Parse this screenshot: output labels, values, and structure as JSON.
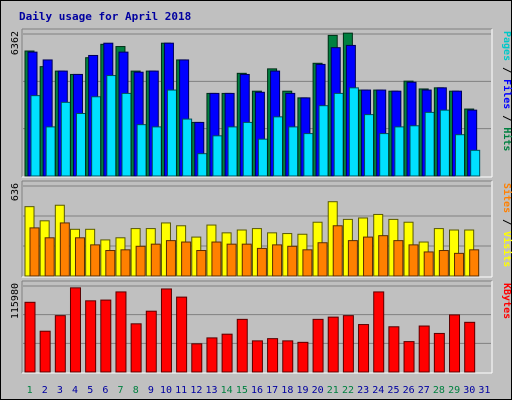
{
  "title": "Daily usage for April 2018",
  "chart_data": [
    {
      "type": "bar",
      "panel": "pages-files-hits",
      "y_max_label": "6362",
      "ylim": [
        0,
        6362
      ],
      "right_labels": [
        {
          "text": "Pages",
          "color": "#00c8c8"
        },
        {
          "text": " / ",
          "color": "#000000"
        },
        {
          "text": "Files",
          "color": "#0000ff"
        },
        {
          "text": " / ",
          "color": "#000000"
        },
        {
          "text": "Hits",
          "color": "#008040"
        }
      ],
      "categories": [
        "1",
        "2",
        "3",
        "4",
        "5",
        "6",
        "7",
        "8",
        "9",
        "10",
        "11",
        "12",
        "13",
        "14",
        "15",
        "16",
        "17",
        "18",
        "19",
        "20",
        "21",
        "22",
        "23",
        "24",
        "25",
        "26",
        "27",
        "28",
        "29",
        "30",
        "31"
      ],
      "series": [
        {
          "name": "Hits",
          "color": "#008040",
          "values": [
            5600,
            4900,
            4700,
            4550,
            5300,
            5900,
            5800,
            4700,
            4700,
            5950,
            5200,
            2400,
            3700,
            3700,
            4600,
            3800,
            4800,
            3800,
            3500,
            5050,
            6300,
            6400,
            3850,
            3850,
            3800,
            4250,
            3900,
            3950,
            3800,
            3000,
            0
          ]
        },
        {
          "name": "Files",
          "color": "#0000ff",
          "values": [
            5550,
            5200,
            4700,
            4550,
            5400,
            5950,
            5550,
            4650,
            4700,
            5950,
            5200,
            2400,
            3700,
            3700,
            4550,
            3750,
            4700,
            3700,
            3500,
            5000,
            5750,
            5850,
            3850,
            3850,
            3800,
            4200,
            3850,
            3950,
            3800,
            2950,
            0
          ]
        },
        {
          "name": "Pages",
          "color": "#00e0ff",
          "values": [
            3600,
            2200,
            3300,
            2800,
            3550,
            4500,
            3700,
            2300,
            2200,
            3850,
            2550,
            1000,
            1800,
            2200,
            2400,
            1650,
            2650,
            2200,
            1900,
            3150,
            3700,
            3950,
            2750,
            1900,
            2200,
            2250,
            2850,
            2950,
            1850,
            1150,
            0
          ]
        }
      ]
    },
    {
      "type": "bar",
      "panel": "sites-visits",
      "y_max_label": "636",
      "ylim": [
        0,
        636
      ],
      "right_labels": [
        {
          "text": "Sites",
          "color": "#ff8000"
        },
        {
          "text": " / ",
          "color": "#000000"
        },
        {
          "text": "Visits",
          "color": "#ffff00"
        }
      ],
      "categories": [
        "1",
        "2",
        "3",
        "4",
        "5",
        "6",
        "7",
        "8",
        "9",
        "10",
        "11",
        "12",
        "13",
        "14",
        "15",
        "16",
        "17",
        "18",
        "19",
        "20",
        "21",
        "22",
        "23",
        "24",
        "25",
        "26",
        "27",
        "28",
        "29",
        "30",
        "31"
      ],
      "series": [
        {
          "name": "Visits",
          "color": "#ffff00",
          "values": [
            490,
            390,
            500,
            330,
            330,
            255,
            270,
            335,
            335,
            375,
            355,
            275,
            360,
            305,
            325,
            335,
            305,
            300,
            295,
            380,
            525,
            400,
            410,
            435,
            400,
            380,
            240,
            335,
            325,
            325,
            0
          ]
        },
        {
          "name": "Sites",
          "color": "#ff8000",
          "values": [
            340,
            270,
            375,
            270,
            220,
            180,
            185,
            210,
            225,
            250,
            240,
            180,
            240,
            225,
            225,
            195,
            220,
            210,
            185,
            235,
            355,
            250,
            275,
            285,
            250,
            220,
            170,
            180,
            160,
            185,
            0
          ]
        }
      ]
    },
    {
      "type": "bar",
      "panel": "kbytes",
      "y_max_label": "115980",
      "ylim": [
        0,
        115980
      ],
      "right_labels": [
        {
          "text": "KBytes",
          "color": "#ff0000"
        }
      ],
      "categories": [
        "1",
        "2",
        "3",
        "4",
        "5",
        "6",
        "7",
        "8",
        "9",
        "10",
        "11",
        "12",
        "13",
        "14",
        "15",
        "16",
        "17",
        "18",
        "19",
        "20",
        "21",
        "22",
        "23",
        "24",
        "25",
        "26",
        "27",
        "28",
        "29",
        "30",
        "31"
      ],
      "series": [
        {
          "name": "KBytes",
          "color": "#ff0000",
          "values": [
            94000,
            55000,
            76000,
            113500,
            96000,
            97000,
            108000,
            65000,
            82000,
            112000,
            101000,
            38000,
            46000,
            51000,
            71000,
            42000,
            45000,
            42000,
            40000,
            71000,
            74000,
            76000,
            64000,
            108000,
            61000,
            41000,
            62000,
            52000,
            77000,
            67000,
            0
          ]
        }
      ]
    }
  ],
  "x_labels": [
    {
      "text": "1",
      "weekend": true
    },
    {
      "text": "2",
      "weekend": false
    },
    {
      "text": "3",
      "weekend": false
    },
    {
      "text": "4",
      "weekend": false
    },
    {
      "text": "5",
      "weekend": false
    },
    {
      "text": "6",
      "weekend": false
    },
    {
      "text": "7",
      "weekend": true
    },
    {
      "text": "8",
      "weekend": true
    },
    {
      "text": "9",
      "weekend": false
    },
    {
      "text": "10",
      "weekend": false
    },
    {
      "text": "11",
      "weekend": false
    },
    {
      "text": "12",
      "weekend": false
    },
    {
      "text": "13",
      "weekend": false
    },
    {
      "text": "14",
      "weekend": true
    },
    {
      "text": "15",
      "weekend": true
    },
    {
      "text": "16",
      "weekend": false
    },
    {
      "text": "17",
      "weekend": false
    },
    {
      "text": "18",
      "weekend": false
    },
    {
      "text": "19",
      "weekend": false
    },
    {
      "text": "20",
      "weekend": false
    },
    {
      "text": "21",
      "weekend": true
    },
    {
      "text": "22",
      "weekend": true
    },
    {
      "text": "23",
      "weekend": false
    },
    {
      "text": "24",
      "weekend": false
    },
    {
      "text": "25",
      "weekend": false
    },
    {
      "text": "26",
      "weekend": false
    },
    {
      "text": "27",
      "weekend": false
    },
    {
      "text": "28",
      "weekend": true
    },
    {
      "text": "29",
      "weekend": true
    },
    {
      "text": "30",
      "weekend": false
    },
    {
      "text": "31",
      "weekend": false
    }
  ],
  "colors": {
    "background": "#c0c0c0",
    "title": "#0000a0",
    "weekday_label": "#0000a0",
    "weekend_label": "#008040",
    "gridline": "#808080"
  }
}
